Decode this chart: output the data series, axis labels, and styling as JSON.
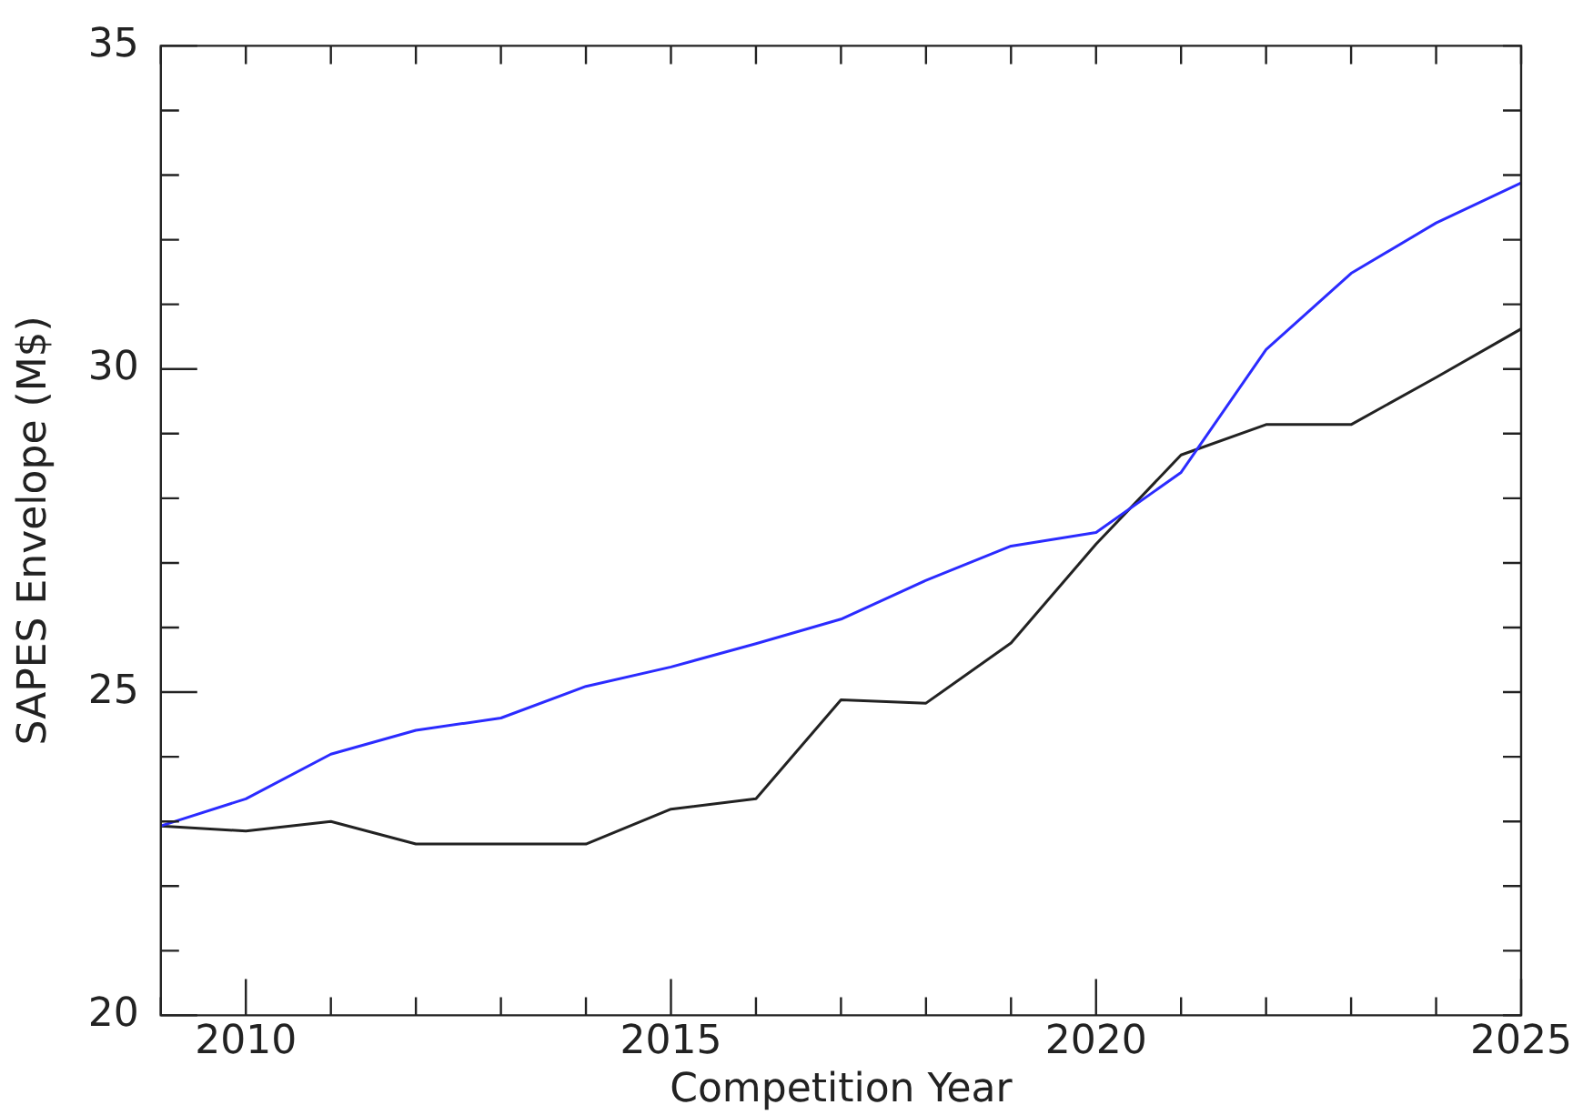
{
  "chart_data": {
    "type": "line",
    "xlabel": "Competition Year",
    "ylabel": "SAPES Envelope (M$)",
    "x": [
      2009,
      2010,
      2011,
      2012,
      2013,
      2014,
      2015,
      2016,
      2017,
      2018,
      2019,
      2020,
      2021,
      2022,
      2023,
      2024,
      2025
    ],
    "series": [
      {
        "color": "#2b2bff",
        "values": [
          22.93,
          23.35,
          24.04,
          24.41,
          24.6,
          25.09,
          25.39,
          25.75,
          26.13,
          26.73,
          27.26,
          27.47,
          28.4,
          30.3,
          31.48,
          32.26,
          32.88
        ]
      },
      {
        "color": "#222222",
        "values": [
          22.93,
          22.85,
          23.0,
          22.65,
          22.65,
          22.65,
          23.19,
          23.35,
          24.88,
          24.83,
          25.76,
          27.29,
          28.67,
          29.14,
          29.14,
          29.87,
          30.62
        ]
      }
    ],
    "xlim": [
      2009,
      2025
    ],
    "xticks": [
      {
        "value": 2009,
        "label": null
      },
      2010,
      {
        "value": 2011,
        "label": null
      },
      {
        "value": 2012,
        "label": null
      },
      {
        "value": 2013,
        "label": null
      },
      {
        "value": 2014,
        "label": null
      },
      2015,
      {
        "value": 2016,
        "label": null
      },
      {
        "value": 2017,
        "label": null
      },
      {
        "value": 2018,
        "label": null
      },
      {
        "value": 2019,
        "label": null
      },
      2020,
      {
        "value": 2021,
        "label": null
      },
      {
        "value": 2022,
        "label": null
      },
      {
        "value": 2023,
        "label": null
      },
      {
        "value": 2024,
        "label": null
      },
      2025
    ],
    "ylim": [
      20,
      35
    ],
    "yticks": [
      20,
      {
        "value": 21,
        "label": null
      },
      {
        "value": 22,
        "label": null
      },
      {
        "value": 23,
        "label": null
      },
      {
        "value": 24,
        "label": null
      },
      25,
      {
        "value": 26,
        "label": null
      },
      {
        "value": 27,
        "label": null
      },
      {
        "value": 28,
        "label": null
      },
      {
        "value": 29,
        "label": null
      },
      30,
      {
        "value": 31,
        "label": null
      },
      {
        "value": 32,
        "label": null
      },
      {
        "value": 33,
        "label": null
      },
      {
        "value": 34,
        "label": null
      },
      35
    ],
    "grid": false,
    "legend": false,
    "marker": "none",
    "line_style": "solid"
  }
}
